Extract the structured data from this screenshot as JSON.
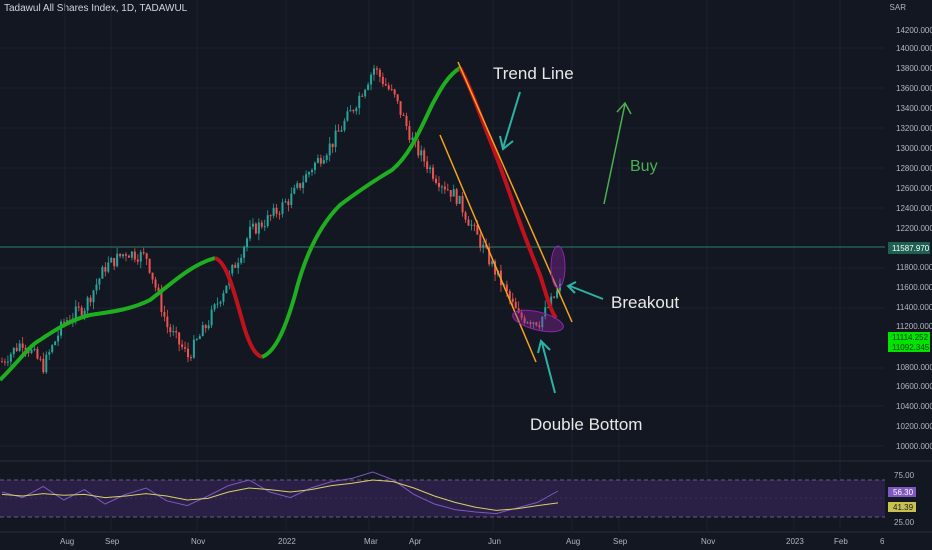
{
  "header": {
    "title": "Tadawul All Shares Index, 1D, TADAWUL"
  },
  "price_scale": {
    "unit": "SAR",
    "ticks": [
      "14200.000",
      "14000.000",
      "13800.000",
      "13600.000",
      "13400.000",
      "13200.000",
      "13000.000",
      "12800.000",
      "12600.000",
      "12400.000",
      "12200.000",
      "11800.000",
      "11600.000",
      "11400.000",
      "11200.000",
      "10800.000",
      "10600.000",
      "10400.000",
      "10200.000",
      "10000.000"
    ],
    "current_label": "11587.970",
    "last_label_1": "11114.252",
    "last_label_2": "11092.345"
  },
  "rsi_scale": {
    "ticks": [
      "75.00",
      "25.00"
    ],
    "rsi_label": "56.30",
    "ma_label": "41.39"
  },
  "time_axis": {
    "labels": [
      "Aug",
      "Sep",
      "Nov",
      "2022",
      "Mar",
      "Apr",
      "Jun",
      "Aug",
      "Sep",
      "Nov",
      "2023",
      "Feb",
      "6"
    ]
  },
  "annotations": {
    "trend_line": "Trend Line",
    "buy": "Buy",
    "breakout": "Breakout",
    "double_bottom": "Double Bottom"
  },
  "colors": {
    "background": "#131722",
    "up_candle": "#26a69a",
    "down_candle": "#ef5350",
    "ma_up": "#1fae1f",
    "ma_down": "#c0121c",
    "channel": "#f5a31a",
    "annotation": "#e8e8e8",
    "buy_text": "#4caf50",
    "arrow_teal": "#2bb3a3",
    "rsi_line": "#7e57c2",
    "rsi_band": "#2a1f44",
    "rsi_ma": "#d8d068",
    "current_price_line": "#2e7d6b",
    "badge_green": "#00e400"
  },
  "chart_data": [
    {
      "type": "line",
      "title": "Tadawul All Shares Index, 1D, TADAWUL",
      "ylim": [
        10000,
        14200
      ],
      "series": [
        {
          "name": "",
          "x": [
            "2021-07-01",
            "2021-07-20",
            "2021-08-05",
            "2021-09-01",
            "2021-09-15",
            "2021-10-05",
            "2021-10-20",
            "2021-11-01",
            "2021-11-20",
            "2021-12-05",
            "2021-12-20",
            "2022-01-10",
            "2022-01-25",
            "2022-02-10",
            "2022-02-25",
            "2022-03-10",
            "2022-03-25",
            "2022-04-10",
            "2022-04-25",
            "2022-05-05",
            "2022-05-15",
            "2022-05-25",
            "2022-06-05",
            "2022-06-15",
            "2022-06-25",
            "2022-07-05",
            "2022-07-12",
            "2022-07-18"
          ],
          "values": [
            10850,
            11050,
            10800,
            11250,
            11400,
            11800,
            11950,
            11900,
            11200,
            10900,
            11250,
            11700,
            12150,
            12300,
            12500,
            12800,
            13050,
            13400,
            13800,
            13500,
            13000,
            12700,
            12500,
            12100,
            11700,
            11300,
            11250,
            11590
          ]
        }
      ],
      "current_price": 11587.97,
      "last_values": [
        11114.252,
        11092.345
      ],
      "xlabels": [
        "Aug",
        "Sep",
        "Nov",
        "2022",
        "Mar",
        "Apr",
        "Jun",
        "Aug",
        "Sep",
        "Nov",
        "2023",
        "Feb"
      ]
    },
    {
      "type": "line",
      "title": "",
      "ylim": [
        10,
        90
      ],
      "series": [
        {
          "name": "",
          "values": [
            55,
            48,
            62,
            45,
            58,
            40,
            52,
            60,
            44,
            38,
            50,
            63,
            70,
            55,
            48,
            60,
            68,
            72,
            80,
            70,
            52,
            40,
            33,
            30,
            28,
            35,
            42,
            56.3
          ]
        },
        {
          "name": "",
          "values": [
            52,
            50,
            53,
            51,
            52,
            48,
            50,
            53,
            50,
            45,
            47,
            55,
            60,
            58,
            55,
            58,
            63,
            66,
            70,
            68,
            60,
            50,
            42,
            36,
            32,
            34,
            38,
            41.39
          ]
        }
      ]
    }
  ]
}
